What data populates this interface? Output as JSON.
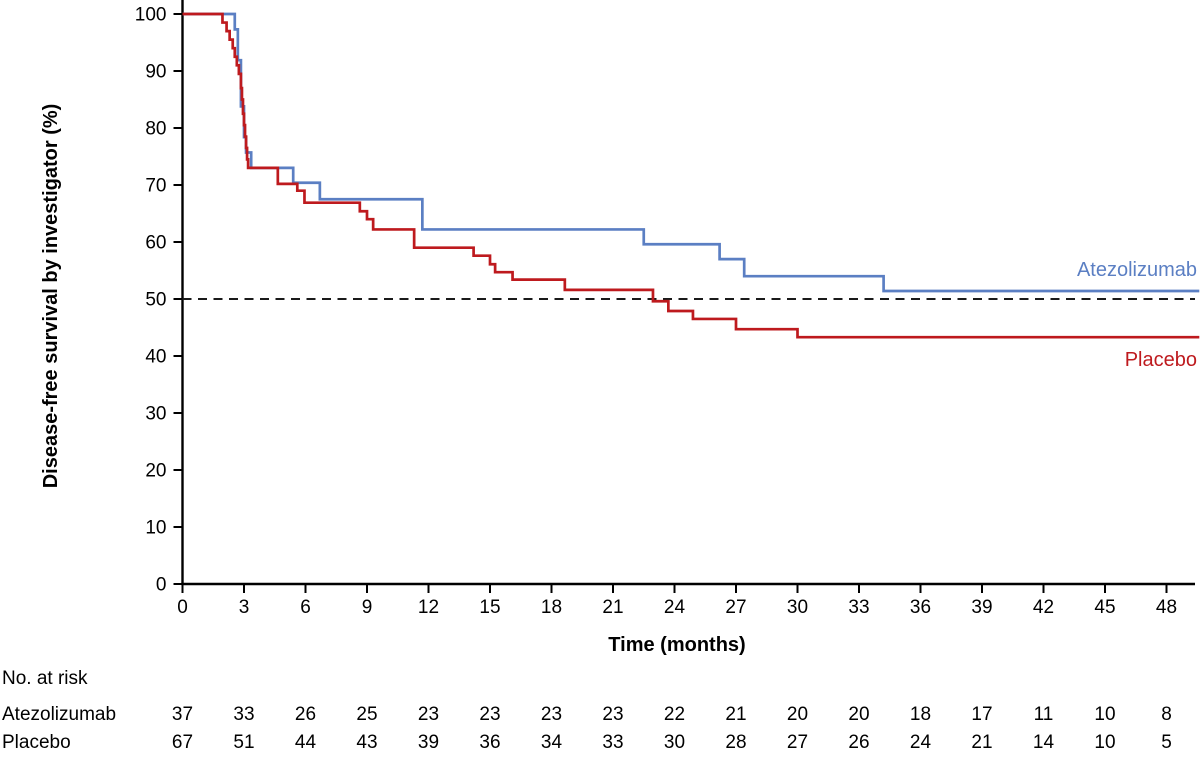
{
  "chart_data": {
    "type": "line",
    "subtype": "kaplan-meier-step",
    "title": "",
    "xlabel": "Time (months)",
    "ylabel": "Disease-free survival by investigator (%)",
    "xlim": [
      0,
      49.6
    ],
    "ylim": [
      0,
      100
    ],
    "x_ticks": [
      0,
      3,
      6,
      9,
      12,
      15,
      18,
      21,
      24,
      27,
      30,
      33,
      36,
      39,
      42,
      45,
      48
    ],
    "y_ticks": [
      0,
      10,
      20,
      30,
      40,
      50,
      60,
      70,
      80,
      90,
      100
    ],
    "grid": false,
    "legend_position": "right-inline",
    "reference_line": {
      "y": 50,
      "style": "dashed",
      "color": "#1a1a1a"
    },
    "series": [
      {
        "name": "Atezolizumab",
        "color": "#5B7FC3",
        "steps": [
          [
            0,
            100
          ],
          [
            2.55,
            97.3
          ],
          [
            2.7,
            91.9
          ],
          [
            2.85,
            83.8
          ],
          [
            3.0,
            78.4
          ],
          [
            3.1,
            75.7
          ],
          [
            3.35,
            73.0
          ],
          [
            5.4,
            70.4
          ],
          [
            6.7,
            67.5
          ],
          [
            11.7,
            62.2
          ],
          [
            22.5,
            59.6
          ],
          [
            26.2,
            57.0
          ],
          [
            27.4,
            54.0
          ],
          [
            34.2,
            51.4
          ],
          [
            49.6,
            51.4
          ]
        ]
      },
      {
        "name": "Placebo",
        "color": "#BE1A1E",
        "steps": [
          [
            0,
            100
          ],
          [
            1.95,
            98.5
          ],
          [
            2.15,
            97.0
          ],
          [
            2.3,
            95.5
          ],
          [
            2.45,
            94.0
          ],
          [
            2.55,
            92.5
          ],
          [
            2.65,
            91.0
          ],
          [
            2.75,
            89.5
          ],
          [
            2.85,
            87.0
          ],
          [
            2.9,
            85.0
          ],
          [
            2.95,
            82.5
          ],
          [
            3.0,
            80.5
          ],
          [
            3.05,
            78.5
          ],
          [
            3.1,
            76.5
          ],
          [
            3.15,
            74.5
          ],
          [
            3.2,
            73.0
          ],
          [
            4.65,
            70.2
          ],
          [
            5.6,
            69.0
          ],
          [
            5.95,
            66.9
          ],
          [
            8.65,
            65.4
          ],
          [
            9.0,
            64.0
          ],
          [
            9.3,
            62.2
          ],
          [
            11.3,
            59.0
          ],
          [
            14.2,
            57.6
          ],
          [
            15.0,
            56.1
          ],
          [
            15.25,
            54.7
          ],
          [
            16.1,
            53.4
          ],
          [
            18.65,
            51.6
          ],
          [
            22.95,
            49.6
          ],
          [
            23.7,
            47.9
          ],
          [
            24.9,
            46.5
          ],
          [
            27.0,
            44.7
          ],
          [
            30.0,
            43.3
          ],
          [
            49.6,
            43.3
          ]
        ]
      }
    ]
  },
  "at_risk": {
    "title": "No. at risk",
    "time_points": [
      0,
      3,
      6,
      9,
      12,
      15,
      18,
      21,
      24,
      27,
      30,
      33,
      36,
      39,
      42,
      45,
      48
    ],
    "rows": [
      {
        "label": "Atezolizumab",
        "values": [
          37,
          33,
          26,
          25,
          23,
          23,
          23,
          23,
          22,
          21,
          20,
          20,
          18,
          17,
          11,
          10,
          8
        ]
      },
      {
        "label": "Placebo",
        "values": [
          67,
          51,
          44,
          43,
          39,
          36,
          34,
          33,
          30,
          28,
          27,
          26,
          24,
          21,
          14,
          10,
          5
        ]
      }
    ]
  },
  "curve_labels": {
    "atezolizumab": "Atezolizumab",
    "placebo": "Placebo"
  },
  "colors": {
    "axis": "#000000",
    "text": "#000000",
    "atezolizumab": "#5B7FC3",
    "placebo": "#BE1A1E",
    "reference": "#1a1a1a"
  }
}
